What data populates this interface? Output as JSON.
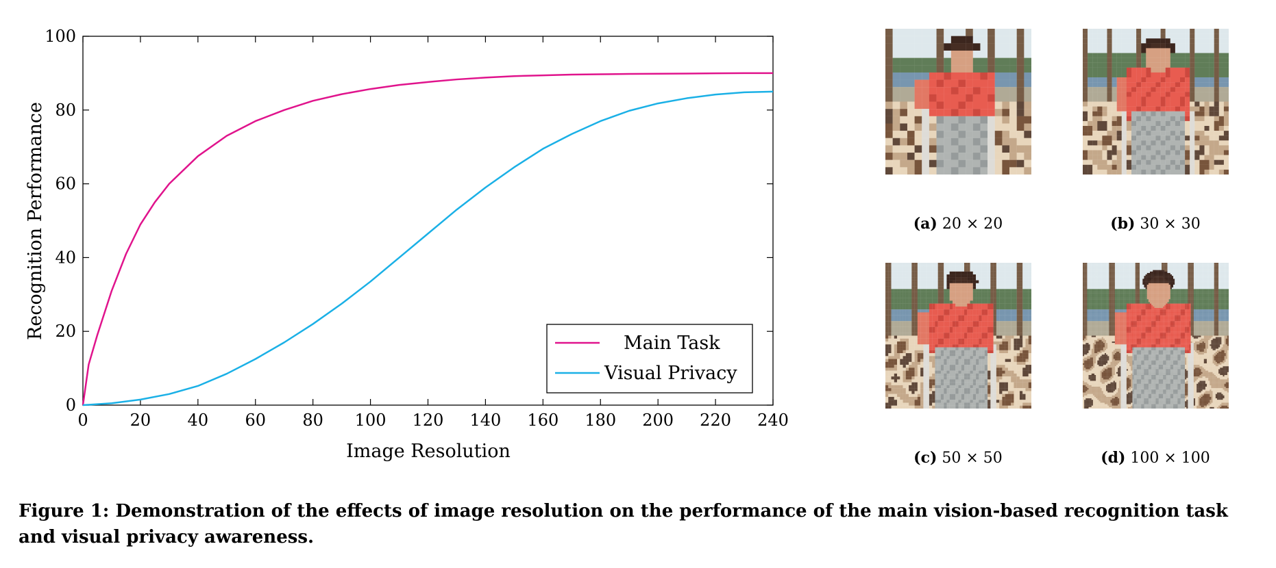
{
  "chart_data": {
    "type": "line",
    "xlabel": "Image Resolution",
    "ylabel": "Recognition Performance",
    "xlim": [
      0,
      240
    ],
    "ylim": [
      0,
      100
    ],
    "x_ticks": [
      0,
      20,
      40,
      60,
      80,
      100,
      120,
      140,
      160,
      180,
      200,
      220,
      240
    ],
    "y_ticks": [
      0,
      20,
      40,
      60,
      80,
      100
    ],
    "legend_position": "bottom-right",
    "grid": false,
    "series": [
      {
        "name": "Main Task",
        "color": "#E0138C",
        "x": [
          0,
          2,
          5,
          10,
          15,
          20,
          25,
          30,
          40,
          50,
          60,
          70,
          80,
          90,
          100,
          110,
          120,
          130,
          140,
          150,
          160,
          170,
          180,
          190,
          200,
          210,
          220,
          230,
          240
        ],
        "y": [
          0,
          11,
          19,
          31,
          41,
          49,
          55,
          60,
          67.5,
          73,
          77,
          80,
          82.5,
          84.3,
          85.7,
          86.8,
          87.6,
          88.3,
          88.8,
          89.2,
          89.4,
          89.6,
          89.7,
          89.8,
          89.85,
          89.9,
          89.95,
          90,
          90
        ]
      },
      {
        "name": "Visual Privacy",
        "color": "#1AB0E6",
        "x": [
          0,
          10,
          20,
          30,
          40,
          50,
          60,
          70,
          80,
          90,
          100,
          110,
          120,
          130,
          140,
          150,
          160,
          170,
          180,
          190,
          200,
          210,
          220,
          230,
          240
        ],
        "y": [
          0,
          0.5,
          1.5,
          3,
          5.2,
          8.5,
          12.5,
          17,
          22,
          27.5,
          33.5,
          40,
          46.5,
          53,
          59,
          64.5,
          69.5,
          73.5,
          77,
          79.8,
          81.8,
          83.2,
          84.2,
          84.8,
          85
        ]
      }
    ]
  },
  "thumbnails": [
    {
      "tag": "(a)",
      "label": "20 × 20",
      "grid": 20
    },
    {
      "tag": "(b)",
      "label": "30 × 30",
      "grid": 30
    },
    {
      "tag": "(c)",
      "label": "50 × 50",
      "grid": 50
    },
    {
      "tag": "(d)",
      "label": "100 × 100",
      "grid": 100
    }
  ],
  "caption": "Figure 1: Demonstration of the effects of image resolution on the performance of the main vision-based recognition task and visual privacy awareness."
}
